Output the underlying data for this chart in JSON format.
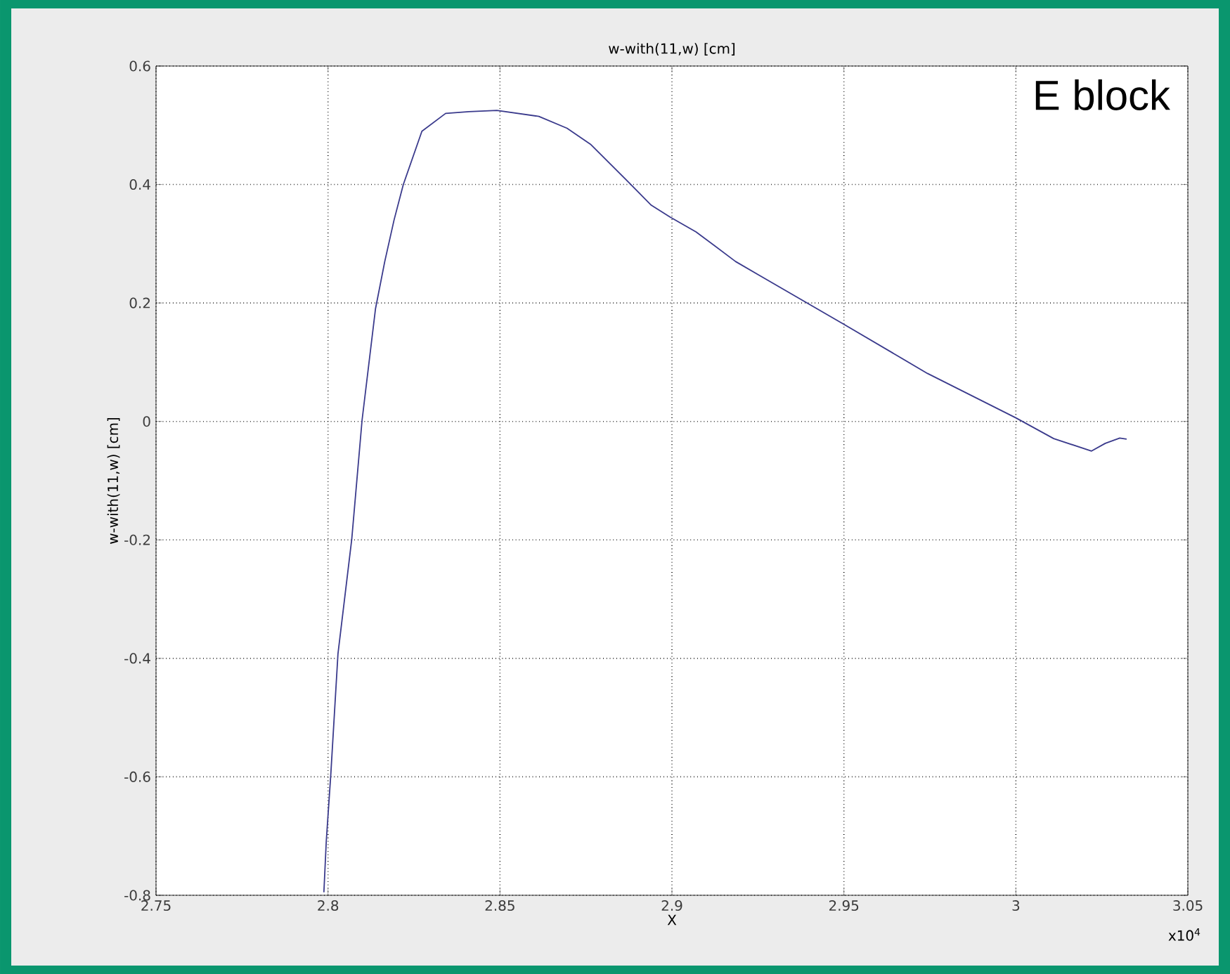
{
  "chart_data": {
    "type": "line",
    "title": "w-with(11,w) [cm]",
    "xlabel": "X",
    "ylabel": "w-with(11,w) [cm]",
    "annotations": [
      "E block",
      "x10$^{4}$"
    ],
    "x": [
      2.7988,
      2.7995,
      2.8008,
      2.8029,
      2.8069,
      2.8099,
      2.8138,
      2.8165,
      2.8192,
      2.8219,
      2.8273,
      2.8342,
      2.841,
      2.8491,
      2.8613,
      2.8695,
      2.8763,
      2.8872,
      2.894,
      2.8995,
      2.907,
      2.9185,
      2.9253,
      2.95,
      2.9743,
      3.0,
      3.011,
      3.022,
      3.026,
      3.0302,
      3.0322
    ],
    "series": [
      {
        "color": "#3a3a8c",
        "values": [
          -0.795,
          -0.708,
          -0.597,
          -0.392,
          -0.199,
          0.002,
          0.19,
          0.27,
          0.34,
          0.4,
          0.49,
          0.52,
          0.523,
          0.525,
          0.515,
          0.495,
          0.468,
          0.405,
          0.365,
          0.345,
          0.32,
          0.27,
          0.247,
          0.164,
          0.081,
          0.006,
          -0.029,
          -0.05,
          -0.037,
          -0.028,
          -0.03
        ]
      }
    ],
    "xlim": [
      2.75,
      3.05
    ],
    "ylim": [
      -0.8,
      0.6
    ],
    "xticks": [
      2.75,
      2.8,
      2.85,
      2.9,
      2.95,
      3,
      3.05
    ],
    "yticks": [
      -0.8,
      -0.6,
      -0.4,
      -0.2,
      0,
      0.2,
      0.4,
      0.6
    ],
    "grid": true,
    "line_style": "solid",
    "marker": "none"
  }
}
